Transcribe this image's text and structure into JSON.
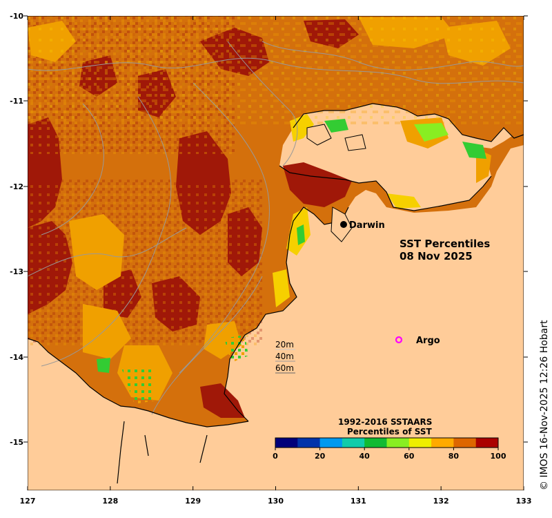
{
  "map": {
    "title_line1": "SST Percentiles",
    "title_line2": "08 Nov 2025",
    "lon_ticks": [
      "127",
      "128",
      "129",
      "130",
      "131",
      "132",
      "133"
    ],
    "lat_ticks": [
      "-10",
      "-11",
      "-12",
      "-13",
      "-14",
      "-15"
    ],
    "places": {
      "darwin": "Darwin",
      "argo": "Argo"
    },
    "contours": [
      "20m",
      "40m",
      "60m"
    ],
    "colorbar": {
      "title_line1": "1992-2016 SSTAARS",
      "title_line2": "Percentiles of SST",
      "ticks": [
        "0",
        "20",
        "40",
        "60",
        "80",
        "100"
      ],
      "colors": [
        "#00007a",
        "#0033aa",
        "#0099ee",
        "#11ccaa",
        "#11bb33",
        "#88ee22",
        "#eeee00",
        "#ffaa00",
        "#dd6600",
        "#aa0000"
      ]
    },
    "colors": {
      "land": "#ffcc99",
      "ocean_base": "#d4700c",
      "warm": "#a01808",
      "mid": "#f0a000",
      "light": "#f6d000",
      "green": "#33cc33",
      "contour": "#999999",
      "argo": "#ff00ff"
    },
    "credit": "© IMOS 16-Nov-2025 12:26 Hobart"
  }
}
